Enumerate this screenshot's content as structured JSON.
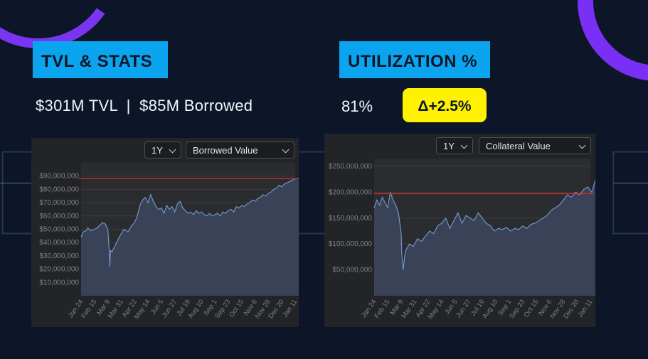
{
  "slide": {
    "left_section_label": "TVL & STATS",
    "right_section_label": "UTILIZATION %",
    "tvl_text": "$301M TVL",
    "separator": "|",
    "borrowed_text": "$85M Borrowed",
    "utilization_value": "81%",
    "delta_badge": "Δ+2.5%"
  },
  "colors": {
    "accent_blue": "#0aa5ee",
    "badge_yellow": "#fff200",
    "arc_purple": "#7a35f0",
    "reference_line": "#e12c22",
    "series_line": "#6f95c6"
  },
  "chart_data": [
    {
      "type": "area",
      "period_selector": "1Y",
      "metric_selector": "Borrowed Value",
      "x_tick_labels": [
        "Jan 24",
        "Feb 15",
        "Mar 9",
        "Mar 31",
        "Apr 22",
        "May 14",
        "Jun 5",
        "Jun 27",
        "Jul 19",
        "Aug 10",
        "Sep 1",
        "Sep 23",
        "Oct 15",
        "Nov 6",
        "Nov 28",
        "Dec 20",
        "Jan 11"
      ],
      "y_tick_labels": [
        "$90,000,000",
        "$80,000,000",
        "$70,000,000",
        "$60,000,000",
        "$50,000,000",
        "$40,000,000",
        "$30,000,000",
        "$20,000,000",
        "$10,000,000"
      ],
      "ylim": [
        0,
        100000000
      ],
      "x": [
        0,
        0.15,
        0.4,
        0.5,
        0.7,
        1.0,
        1.2,
        1.4,
        1.6,
        1.8,
        2.0,
        2.1,
        2.15,
        2.2,
        2.3,
        2.6,
        2.9,
        3.2,
        3.5,
        3.8,
        4.0,
        4.2,
        4.4,
        4.6,
        4.8,
        5.0,
        5.2,
        5.4,
        5.6,
        5.8,
        6.0,
        6.2,
        6.4,
        6.6,
        6.8,
        7.0,
        7.2,
        7.4,
        7.6,
        7.8,
        8.0,
        8.2,
        8.4,
        8.6,
        8.8,
        9.0,
        9.2,
        9.4,
        9.6,
        9.8,
        10.0,
        10.2,
        10.4,
        10.6,
        10.8,
        11.0,
        11.2,
        11.4,
        11.6,
        11.8,
        12.0,
        12.2,
        12.4,
        12.6,
        12.8,
        13.0,
        13.2,
        13.4,
        13.6,
        13.8,
        14.0,
        14.2,
        14.4,
        14.6,
        14.8,
        15.0,
        15.2,
        15.4,
        15.6,
        15.8,
        16.0,
        16.2,
        16.4,
        16.6,
        16.8
      ],
      "values": [
        44000000,
        48000000,
        49000000,
        51000000,
        49000000,
        50000000,
        51000000,
        53000000,
        55000000,
        54000000,
        50000000,
        35000000,
        22000000,
        34000000,
        33000000,
        39000000,
        45000000,
        50000000,
        48000000,
        53000000,
        55000000,
        60000000,
        68000000,
        72000000,
        74000000,
        70000000,
        76000000,
        71000000,
        67000000,
        65000000,
        66000000,
        62000000,
        68000000,
        65000000,
        67000000,
        63000000,
        69000000,
        71000000,
        66000000,
        64000000,
        62000000,
        63000000,
        61000000,
        64000000,
        62000000,
        63000000,
        61000000,
        60000000,
        62000000,
        60000000,
        61000000,
        62000000,
        60000000,
        63000000,
        62000000,
        64000000,
        65000000,
        63000000,
        67000000,
        66000000,
        68000000,
        67000000,
        69000000,
        70000000,
        72000000,
        71000000,
        73000000,
        74000000,
        76000000,
        75000000,
        77000000,
        78000000,
        80000000,
        81000000,
        83000000,
        82000000,
        84000000,
        85000000,
        86000000,
        87000000,
        88000000,
        88000000,
        89000000,
        88500000,
        88000000
      ],
      "reference_line": 88000000
    },
    {
      "type": "area",
      "period_selector": "1Y",
      "metric_selector": "Collateral Value",
      "x_tick_labels": [
        "Jan 24",
        "Feb 15",
        "Mar 9",
        "Mar 31",
        "Apr 22",
        "May 14",
        "Jun 5",
        "Jun 27",
        "Jul 19",
        "Aug 10",
        "Sep 1",
        "Sep 23",
        "Oct 15",
        "Nov 6",
        "Nov 28",
        "Dec 20",
        "Jan 11"
      ],
      "y_tick_labels": [
        "$250,000,000",
        "$200,000,000",
        "$150,000,000",
        "$100,000,000",
        "$50,000,000"
      ],
      "ylim": [
        0,
        265000000
      ],
      "x": [
        0,
        0.2,
        0.4,
        0.6,
        0.8,
        1.0,
        1.2,
        1.4,
        1.6,
        1.8,
        2.0,
        2.05,
        2.15,
        2.3,
        2.6,
        2.9,
        3.2,
        3.5,
        3.8,
        4.1,
        4.4,
        4.7,
        5.0,
        5.3,
        5.6,
        5.9,
        6.2,
        6.5,
        6.8,
        7.1,
        7.4,
        7.7,
        8.0,
        8.3,
        8.6,
        8.9,
        9.2,
        9.5,
        9.8,
        10.1,
        10.4,
        10.7,
        11.0,
        11.3,
        11.6,
        11.9,
        12.2,
        12.5,
        12.8,
        13.1,
        13.4,
        13.7,
        14.0,
        14.3,
        14.6,
        14.9,
        15.2,
        15.5,
        15.8,
        16.1,
        16.4,
        16.6,
        16.8
      ],
      "values": [
        170000000,
        185000000,
        175000000,
        190000000,
        180000000,
        170000000,
        200000000,
        185000000,
        175000000,
        160000000,
        120000000,
        80000000,
        50000000,
        85000000,
        100000000,
        95000000,
        110000000,
        105000000,
        115000000,
        125000000,
        120000000,
        135000000,
        140000000,
        150000000,
        130000000,
        145000000,
        160000000,
        140000000,
        155000000,
        150000000,
        145000000,
        160000000,
        150000000,
        140000000,
        135000000,
        125000000,
        130000000,
        128000000,
        132000000,
        125000000,
        130000000,
        128000000,
        135000000,
        130000000,
        138000000,
        140000000,
        145000000,
        150000000,
        155000000,
        165000000,
        170000000,
        175000000,
        185000000,
        195000000,
        190000000,
        200000000,
        195000000,
        205000000,
        210000000,
        200000000,
        225000000,
        215000000,
        205000000
      ],
      "reference_line": 197000000
    }
  ]
}
